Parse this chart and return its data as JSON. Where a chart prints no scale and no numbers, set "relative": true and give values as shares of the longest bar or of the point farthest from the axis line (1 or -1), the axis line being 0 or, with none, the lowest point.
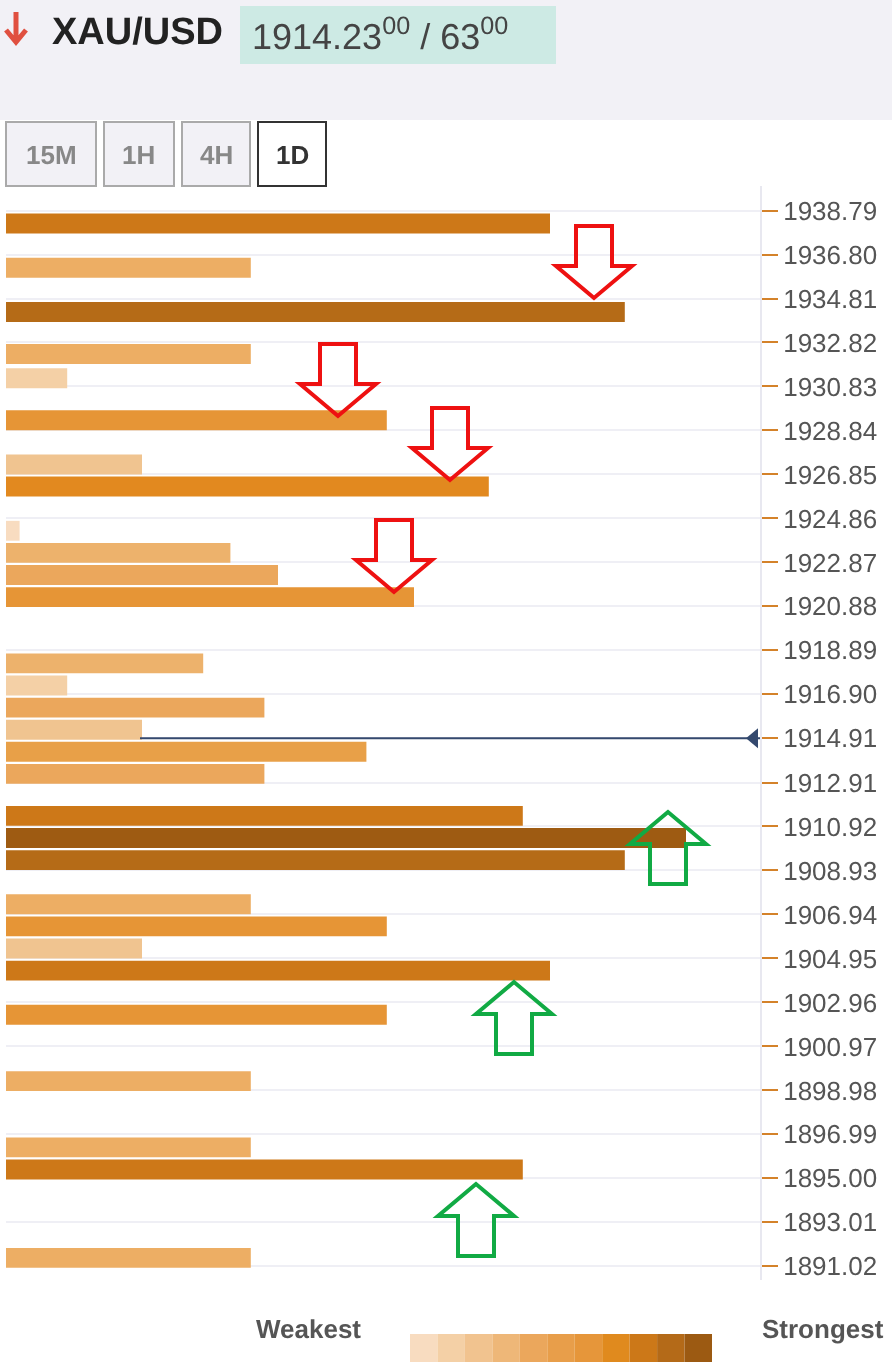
{
  "chart_data": {
    "type": "bar",
    "orientation": "horizontal",
    "relative": true,
    "title": "XAU/USD",
    "subtitle": "1914.23$^{00}$ / 63$^{00}$",
    "annotations": [
      "15M",
      "1H",
      "4H",
      "1D",
      "Weakest",
      "Strongest"
    ],
    "x": [
      1938.2,
      1936.2,
      1934.2,
      1932.3,
      1931.2,
      1929.3,
      1927.3,
      1926.3,
      1924.3,
      1923.3,
      1922.3,
      1921.3,
      1918.3,
      1917.3,
      1916.3,
      1915.3,
      1914.3,
      1913.3,
      1911.4,
      1910.4,
      1909.4,
      1907.4,
      1906.4,
      1905.4,
      1904.4,
      1902.4,
      1899.4,
      1896.4,
      1895.4,
      1891.4
    ],
    "values": [
      0.8,
      0.36,
      0.91,
      0.36,
      0.09,
      0.56,
      0.2,
      0.71,
      0.02,
      0.33,
      0.4,
      0.6,
      0.29,
      0.09,
      0.38,
      0.2,
      0.53,
      0.38,
      0.76,
      1,
      0.91,
      0.36,
      0.56,
      0.2,
      0.8,
      0.56,
      0.36,
      0.36,
      0.76,
      0.36
    ],
    "colors": [
      "#cd7818",
      "#edae64",
      "#b56b17",
      "#edae64",
      "#f4d0a6",
      "#e69536",
      "#f0c490",
      "#e2891f",
      "#f8dcc0",
      "#edb26c",
      "#eba75c",
      "#e69536",
      "#edb26c",
      "#f4d0a6",
      "#eba75c",
      "#f0c490",
      "#e8a048",
      "#eba75c",
      "#cd7818",
      "#9e5b12",
      "#b56b17",
      "#edae64",
      "#e69536",
      "#f0c490",
      "#cd7818",
      "#e69536",
      "#edae64",
      "#edae64",
      "#cd7818",
      "#edae64"
    ],
    "ylim": [
      1890.4,
      1939.9
    ],
    "yticks": [
      1938.79,
      {
        "value": 1936.8,
        "label": "1936.80"
      },
      1934.81,
      1932.82,
      1930.83,
      1928.84,
      1926.85,
      1924.86,
      1922.87,
      1920.88,
      1918.89,
      {
        "value": 1916.9,
        "label": "1916.90"
      },
      1914.91,
      1912.91,
      1910.92,
      1908.93,
      1906.94,
      1904.95,
      1902.96,
      1900.97,
      1898.98,
      1896.99,
      {
        "value": 1895,
        "label": "1895.00"
      },
      1893.01,
      1891.02
    ],
    "ref_lines": [
      {
        "axis": "y",
        "value": 1914.91,
        "color": "#34496e"
      }
    ],
    "grid": "y"
  }
}
